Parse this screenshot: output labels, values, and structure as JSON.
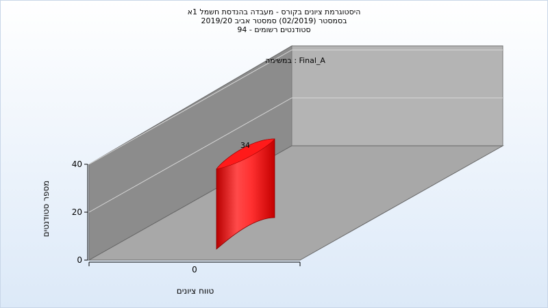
{
  "header": {
    "title_lines": [
      "היסטוגרמת ציונים בקורס - מעבדה בהנדסת חשמל 1א",
      "בסמסטר  (02/2019)  סמסטר אביב 2019/20",
      "סטודנטים רשומים - 94"
    ]
  },
  "chart_data": {
    "type": "bar",
    "categories": [
      "0"
    ],
    "values": [
      34
    ],
    "data_labels": [
      "34"
    ],
    "series": [
      {
        "name": "במשימה : Final_A",
        "values": [
          34
        ]
      }
    ],
    "xlabel": "טווח ציונים",
    "ylabel": "מספר סטודנטים",
    "ylim": [
      0,
      40
    ],
    "y_ticks": [
      "0",
      "20",
      "40"
    ],
    "grid": true,
    "legend": "top",
    "colors": {
      "bar": "#ee1111",
      "wall": "#8c8c8c",
      "back": "#b4b4b4",
      "floor": "#a8a8a8"
    }
  }
}
